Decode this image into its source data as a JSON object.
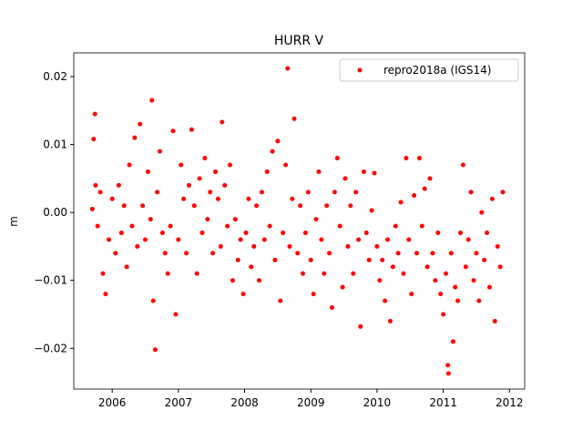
{
  "chart_data": {
    "type": "scatter",
    "title": "HURR V",
    "ylabel": "m",
    "xlim": [
      2005.42,
      2012.23
    ],
    "xticks": [
      2006,
      2007,
      2008,
      2009,
      2010,
      2011,
      2012
    ],
    "ylim": [
      -0.026,
      0.0235
    ],
    "yticks": [
      {
        "value": -0.02,
        "label": "−0.02"
      },
      {
        "value": -0.01,
        "label": "−0.01"
      },
      {
        "value": 0,
        "label": "0.00"
      },
      0.01,
      0.02
    ],
    "legend": "upper right",
    "series": [
      {
        "name": "repro2018a (IGS14)",
        "color": "#ff0000",
        "x": [
          2005.7,
          2005.72,
          2005.74,
          2005.75,
          2005.78,
          2005.82,
          2005.86,
          2005.9,
          2005.95,
          2006.0,
          2006.05,
          2006.1,
          2006.14,
          2006.18,
          2006.22,
          2006.26,
          2006.3,
          2006.34,
          2006.38,
          2006.42,
          2006.46,
          2006.5,
          2006.54,
          2006.58,
          2006.6,
          2006.62,
          2006.65,
          2006.68,
          2006.72,
          2006.76,
          2006.8,
          2006.84,
          2006.88,
          2006.92,
          2006.96,
          2007.0,
          2007.04,
          2007.08,
          2007.12,
          2007.16,
          2007.2,
          2007.24,
          2007.28,
          2007.32,
          2007.36,
          2007.4,
          2007.44,
          2007.48,
          2007.52,
          2007.56,
          2007.6,
          2007.64,
          2007.66,
          2007.7,
          2007.74,
          2007.78,
          2007.82,
          2007.86,
          2007.9,
          2007.94,
          2007.98,
          2008.02,
          2008.06,
          2008.1,
          2008.14,
          2008.18,
          2008.22,
          2008.26,
          2008.3,
          2008.34,
          2008.38,
          2008.42,
          2008.46,
          2008.5,
          2008.54,
          2008.58,
          2008.62,
          2008.65,
          2008.68,
          2008.72,
          2008.75,
          2008.8,
          2008.84,
          2008.88,
          2008.92,
          2008.96,
          2009.0,
          2009.04,
          2009.08,
          2009.12,
          2009.16,
          2009.2,
          2009.24,
          2009.28,
          2009.32,
          2009.36,
          2009.4,
          2009.44,
          2009.48,
          2009.52,
          2009.56,
          2009.6,
          2009.64,
          2009.68,
          2009.72,
          2009.75,
          2009.8,
          2009.84,
          2009.88,
          2009.92,
          2009.96,
          2010.0,
          2010.04,
          2010.08,
          2010.12,
          2010.16,
          2010.2,
          2010.24,
          2010.28,
          2010.32,
          2010.36,
          2010.4,
          2010.44,
          2010.48,
          2010.52,
          2010.56,
          2010.6,
          2010.64,
          2010.68,
          2010.72,
          2010.76,
          2010.8,
          2010.84,
          2010.88,
          2010.92,
          2010.96,
          2011.0,
          2011.04,
          2011.07,
          2011.08,
          2011.12,
          2011.15,
          2011.18,
          2011.22,
          2011.26,
          2011.3,
          2011.34,
          2011.38,
          2011.42,
          2011.46,
          2011.5,
          2011.54,
          2011.58,
          2011.62,
          2011.66,
          2011.7,
          2011.74,
          2011.78,
          2011.82,
          2011.86,
          2011.9
        ],
        "values": [
          0.0005,
          0.0108,
          0.0145,
          0.004,
          -0.002,
          0.003,
          -0.009,
          -0.012,
          -0.004,
          0.002,
          -0.006,
          0.004,
          -0.003,
          0.001,
          -0.008,
          0.007,
          -0.002,
          0.011,
          -0.005,
          0.013,
          0.001,
          -0.004,
          0.006,
          -0.001,
          0.0165,
          -0.013,
          -0.0202,
          0.003,
          0.009,
          -0.003,
          -0.006,
          -0.009,
          -0.002,
          0.012,
          -0.015,
          -0.004,
          0.007,
          0.002,
          -0.006,
          0.004,
          0.0122,
          0.001,
          -0.009,
          0.005,
          -0.003,
          0.008,
          -0.001,
          0.003,
          -0.006,
          0.006,
          0.002,
          -0.005,
          0.0133,
          0.004,
          -0.002,
          0.007,
          -0.01,
          -0.001,
          -0.007,
          -0.004,
          -0.012,
          -0.003,
          0.002,
          -0.008,
          -0.005,
          0.001,
          -0.01,
          0.003,
          -0.004,
          0.006,
          -0.002,
          0.009,
          -0.007,
          0.0105,
          -0.013,
          -0.003,
          0.007,
          0.0212,
          -0.005,
          0.002,
          0.0138,
          -0.006,
          0.001,
          -0.009,
          -0.003,
          0.003,
          -0.007,
          -0.012,
          -0.001,
          0.006,
          -0.004,
          -0.009,
          0.001,
          -0.006,
          -0.014,
          0.003,
          0.008,
          -0.002,
          -0.011,
          0.005,
          -0.005,
          0.001,
          -0.009,
          0.003,
          -0.004,
          -0.0168,
          0.006,
          -0.003,
          -0.007,
          0.0003,
          0.0058,
          -0.005,
          -0.01,
          -0.007,
          -0.013,
          -0.004,
          -0.016,
          -0.008,
          -0.002,
          -0.006,
          0.0015,
          -0.009,
          0.008,
          -0.004,
          -0.012,
          0.0025,
          -0.006,
          0.008,
          -0.002,
          0.0035,
          -0.008,
          0.005,
          -0.006,
          -0.01,
          -0.003,
          -0.012,
          -0.015,
          -0.009,
          -0.0225,
          -0.0237,
          -0.006,
          -0.019,
          -0.011,
          -0.013,
          -0.003,
          0.007,
          -0.008,
          -0.004,
          0.003,
          -0.01,
          -0.006,
          -0.013,
          0.0,
          -0.007,
          -0.003,
          -0.011,
          0.002,
          -0.016,
          -0.005,
          -0.008,
          0.003
        ]
      }
    ]
  }
}
